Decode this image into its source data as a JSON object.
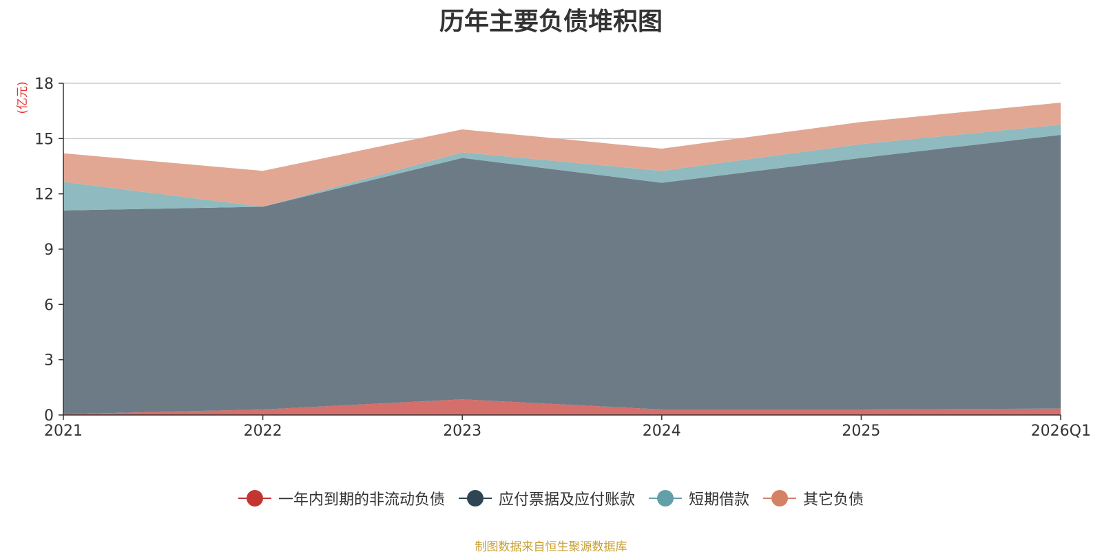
{
  "chart_data": {
    "type": "area",
    "stacked": true,
    "title": "历年主要负债堆积图",
    "ylabel": "(亿元)",
    "xlabel": "",
    "categories": [
      "2021",
      "2022",
      "2023",
      "2024",
      "2025",
      "2026Q1"
    ],
    "ylim": [
      0,
      18
    ],
    "yticks": [
      0,
      3,
      6,
      9,
      12,
      15,
      18
    ],
    "grid": true,
    "legend_position": "bottom",
    "series": [
      {
        "name": "一年内到期的非流动负债",
        "color": "#c23531",
        "fill": "#d46f6c",
        "values": [
          0.05,
          0.3,
          0.85,
          0.3,
          0.3,
          0.35
        ]
      },
      {
        "name": "应付票据及应付账款",
        "color": "#2f4554",
        "fill": "#6d7b86",
        "values": [
          11.05,
          11.0,
          13.1,
          12.3,
          13.65,
          14.85
        ]
      },
      {
        "name": "短期借款",
        "color": "#61a0a8",
        "fill": "#8fbac0",
        "values": [
          1.55,
          0.0,
          0.3,
          0.65,
          0.75,
          0.55
        ]
      },
      {
        "name": "其它负债",
        "color": "#d48265",
        "fill": "#e1a792",
        "values": [
          1.55,
          1.95,
          1.25,
          1.2,
          1.2,
          1.2
        ]
      }
    ],
    "source": "制图数据来自恒生聚源数据库"
  }
}
